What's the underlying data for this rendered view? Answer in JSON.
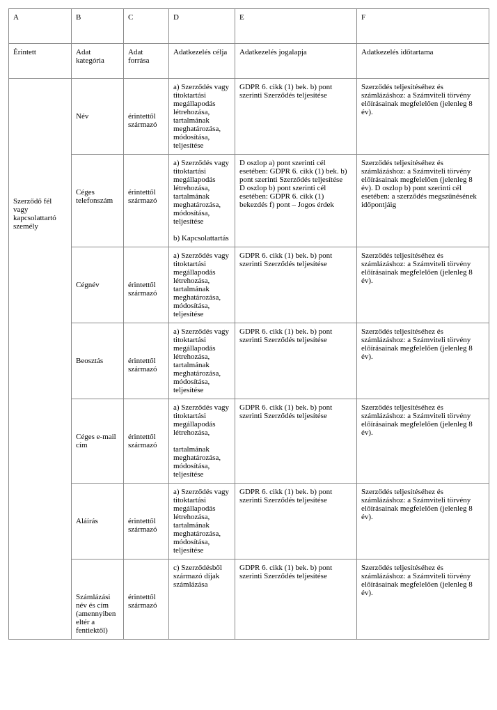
{
  "table": {
    "columns": [
      "A",
      "B",
      "C",
      "D",
      "E",
      "F"
    ],
    "headers": [
      "Érintett",
      "Adat kategória",
      "Adat forrása",
      "Adatkezelés célja",
      "Adatkezelés jogalapja",
      "Adatkezelés időtartama"
    ],
    "rowgroup_label": "Szerződő fél vagy kapcsolattartó személy",
    "rows": [
      {
        "b": "Név",
        "c": "érintettől származó",
        "d": "a) Szerződés vagy titoktartási megállapodás létrehozása, tartalmának meghatározása, módosítása, teljesítése",
        "e": "GDPR 6. cikk (1) bek. b) pont szerinti Szerződés teljesítése",
        "f": "Szerződés teljesítéséhez és számlázáshoz: a Számviteli törvény előírásainak megfelelően (jelenleg 8 év)."
      },
      {
        "b": "Céges telefonszám",
        "c": "érintettől származó",
        "d": "a) Szerződés vagy titoktartási megállapodás létrehozása, tartalmának meghatározása, módosítása, teljesítése\n\nb) Kapcsolattartás",
        "e": "D oszlop a) pont szerinti cél esetében: GDPR 6. cikk (1) bek. b) pont szerinti Szerződés teljesítése\nD oszlop b) pont szerinti cél esetében: GDPR 6. cikk (1) bekezdés f) pont – Jogos érdek",
        "f": "Szerződés teljesítéséhez és számlázáshoz: a Számviteli törvény előírásainak megfelelően (jelenleg 8 év). D oszlop b) pont szerinti cél esetében: a szerződés megszűnésének időpontjáig"
      },
      {
        "b": "Cégnév",
        "c": "érintettől származó",
        "d": "a) Szerződés vagy titoktartási megállapodás létrehozása, tartalmának meghatározása, módosítása, teljesítése",
        "e": "GDPR 6. cikk (1) bek. b) pont szerinti Szerződés teljesítése",
        "f": "Szerződés teljesítéséhez és számlázáshoz: a Számviteli törvény előírásainak megfelelően (jelenleg 8 év)."
      },
      {
        "b": "Beosztás",
        "c": "érintettől származó",
        "d": "a) Szerződés vagy titoktartási megállapodás létrehozása, tartalmának meghatározása, módosítása, teljesítése",
        "e": "GDPR 6. cikk (1) bek. b) pont szerinti Szerződés teljesítése",
        "f": "Szerződés teljesítéséhez és számlázáshoz: a Számviteli törvény előírásainak megfelelően (jelenleg 8 év)."
      },
      {
        "b": "Céges e-mail cím",
        "c": "érintettől származó",
        "d": "a) Szerződés vagy titoktartási megállapodás létrehozása,\n\ntartalmának meghatározása, módosítása, teljesítése",
        "e": "GDPR 6. cikk (1) bek. b) pont szerinti Szerződés teljesítése",
        "f": "Szerződés teljesítéséhez és számlázáshoz: a Számviteli törvény előírásainak megfelelően (jelenleg 8 év)."
      },
      {
        "b": "Aláírás",
        "c": "érintettől származó",
        "d": "a) Szerződés vagy titoktartási megállapodás létrehozása, tartalmának meghatározása, módosítása, teljesítése",
        "e": "GDPR 6. cikk (1) bek. b) pont szerinti Szerződés teljesítése",
        "f": "Szerződés teljesítéséhez és számlázáshoz: a Számviteli törvény előírásainak megfelelően (jelenleg 8 év)."
      },
      {
        "b": "Számlázási név és cím (amennyiben eltér a fentiektől)",
        "c": "érintettől származó",
        "d": "c) Szerződésből származó díjak számlázása",
        "e": "GDPR 6. cikk (1) bek. b) pont szerinti Szerződés teljesítése",
        "f": "Szerződés teljesítéséhez és számlázáshoz: a Számviteli törvény előírásainak megfelelően (jelenleg 8 év)."
      }
    ],
    "midrow_top_pad": "48px",
    "styling": {
      "border_color": "#888888",
      "background_color": "#ffffff",
      "font_family": "Times New Roman",
      "font_size_pt": 8,
      "text_color": "#000000"
    }
  }
}
